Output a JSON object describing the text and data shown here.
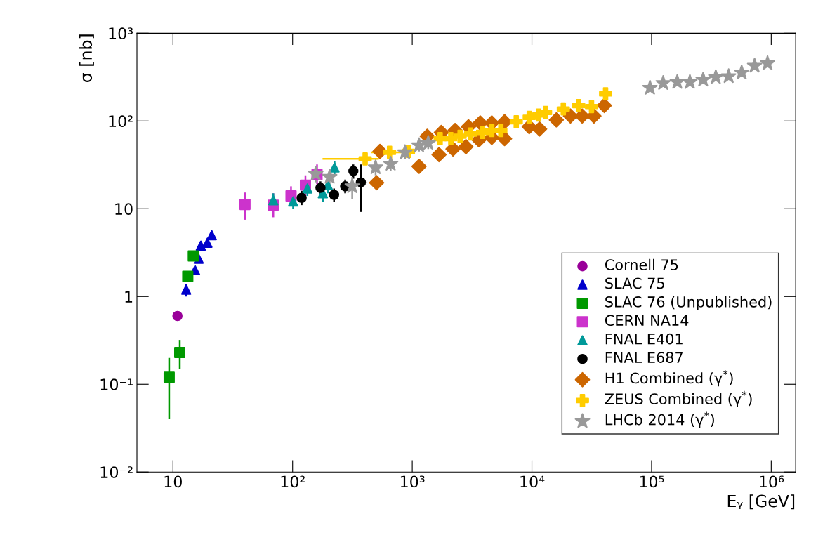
{
  "chart_data": {
    "type": "scatter",
    "xlabel": "Eᵧ [GeV]",
    "ylabel": "σ [nb]",
    "log": "xy",
    "grid": false,
    "legend": "bottom right",
    "xlim": [
      5,
      1600000
    ],
    "ylim": [
      0.01,
      1000
    ],
    "xticks": [
      {
        "value": 10,
        "label": "10"
      },
      {
        "value": 100,
        "label": "10²"
      },
      {
        "value": 1000,
        "label": "10³"
      },
      {
        "value": 10000,
        "label": "10⁴"
      },
      {
        "value": 100000,
        "label": "10⁵"
      },
      {
        "value": 1000000,
        "label": "10⁶"
      }
    ],
    "yticks": [
      {
        "value": 0.01,
        "label": "10⁻²"
      },
      {
        "value": 0.1,
        "label": "10⁻¹"
      },
      {
        "value": 1,
        "label": "1"
      },
      {
        "value": 10,
        "label": "10"
      },
      {
        "value": 100,
        "label": "10²"
      },
      {
        "value": 1000,
        "label": "10³"
      }
    ],
    "series": [
      {
        "name": "Cornell 75",
        "color": "#990099",
        "marker": "circle",
        "x": [
          10.9
        ],
        "values": [
          0.6
        ],
        "errors": [
          [
            0.53,
            0.67
          ]
        ]
      },
      {
        "name": "SLAC 75",
        "color": "#0000cc",
        "marker": "triangle",
        "x": [
          12.9,
          15.3,
          16.4,
          17.1,
          19.4,
          21.1
        ],
        "values": [
          1.2,
          2.0,
          2.7,
          3.8,
          4.1,
          5.0
        ],
        "errors": [
          [
            1.0,
            1.4
          ],
          null,
          null,
          null,
          null,
          null
        ]
      },
      {
        "name": "SLAC 76 (Unpublished)",
        "color": "#009900",
        "marker": "square",
        "x": [
          9.3,
          11.4,
          13.3,
          14.8
        ],
        "values": [
          0.12,
          0.23,
          1.7,
          2.9
        ],
        "errors": [
          [
            0.04,
            0.2
          ],
          [
            0.15,
            0.32
          ],
          null,
          null
        ]
      },
      {
        "name": "CERN NA14",
        "color": "#cc33cc",
        "marker": "square",
        "x": [
          40,
          69,
          97,
          128,
          160
        ],
        "values": [
          11.2,
          11,
          14,
          18.6,
          24.6
        ],
        "errors": [
          [
            7.5,
            15.3
          ],
          [
            8,
            15
          ],
          [
            11,
            18
          ],
          [
            14,
            24
          ],
          [
            19,
            32
          ]
        ]
      },
      {
        "name": "FNAL E401",
        "color": "#009999",
        "marker": "triangle",
        "x": [
          69,
          101,
          133,
          179,
          197,
          224
        ],
        "values": [
          12.5,
          12.1,
          17.0,
          15.0,
          18.6,
          29.5
        ],
        "errors": [
          [
            10,
            15
          ],
          [
            10,
            14.5
          ],
          [
            14,
            20
          ],
          [
            12,
            18
          ],
          [
            15,
            22
          ],
          [
            24,
            35
          ]
        ]
      },
      {
        "name": "FNAL E687",
        "color": "#000000",
        "marker": "circle",
        "x": [
          119,
          171,
          222,
          275,
          322,
          372
        ],
        "values": [
          13.3,
          17.3,
          14.4,
          18.0,
          26.9,
          20.0
        ],
        "errors": [
          [
            11,
            16
          ],
          [
            14.5,
            20.5
          ],
          [
            12,
            17
          ],
          [
            15,
            21.5
          ],
          [
            22,
            32
          ],
          [
            9.2,
            32
          ]
        ]
      },
      {
        "name": "H1 Combined (γ$^{*}$)",
        "color": "#cc6600",
        "marker": "diamond",
        "x": [
          504,
          537,
          1140,
          1334,
          1674,
          1750,
          2190,
          2280,
          2810,
          2950,
          3610,
          3700,
          4620,
          4620,
          5910,
          5910,
          9500,
          11600,
          16000,
          21000,
          26300,
          33000,
          40300
        ],
        "values": [
          19.8,
          45,
          30.4,
          67,
          41.3,
          74,
          48,
          78,
          51,
          86,
          61,
          95,
          65,
          95,
          63,
          98,
          86,
          81,
          103,
          114,
          114,
          114,
          150
        ]
      },
      {
        "name": "ZEUS Combined (γ$^{*}$)",
        "color": "#ffcc00",
        "marker": "cross",
        "x": [
          404,
          646,
          930,
          1710,
          2100,
          2510,
          3070,
          3870,
          4620,
          5500,
          7400,
          9500,
          11400,
          13000,
          18300,
          24600,
          31500,
          41300
        ],
        "values": [
          37,
          44,
          45,
          63,
          63,
          67,
          71,
          74,
          78,
          78,
          98,
          110,
          117,
          125,
          137,
          150,
          146,
          204
        ],
        "xerrors": [
          [
            178,
            525
          ],
          [
            450,
            900
          ],
          null,
          null,
          null,
          null,
          null,
          null,
          null,
          null,
          null,
          null,
          null,
          null,
          null,
          null,
          null,
          null
        ]
      },
      {
        "name": "LHCb 2014 (γ$^{*}$)",
        "color": "#999999",
        "marker": "star",
        "x": [
          156,
          204,
          315,
          494,
          660,
          870,
          1140,
          1360,
          97000,
          125000,
          164000,
          209000,
          270000,
          344000,
          441000,
          566000,
          726000,
          931000
        ],
        "values": [
          25,
          23,
          18,
          29.5,
          32.4,
          43.9,
          52.7,
          56,
          238,
          270,
          277,
          277,
          295,
          315,
          323,
          356,
          426,
          453
        ],
        "errors": [
          [
            20,
            30
          ],
          [
            18,
            28
          ],
          [
            13,
            23
          ],
          [
            24,
            35
          ],
          [
            27,
            38
          ],
          [
            37,
            51
          ],
          [
            45,
            61
          ],
          [
            48,
            64
          ],
          null,
          null,
          null,
          null,
          null,
          null,
          null,
          null,
          null,
          null
        ]
      }
    ]
  }
}
